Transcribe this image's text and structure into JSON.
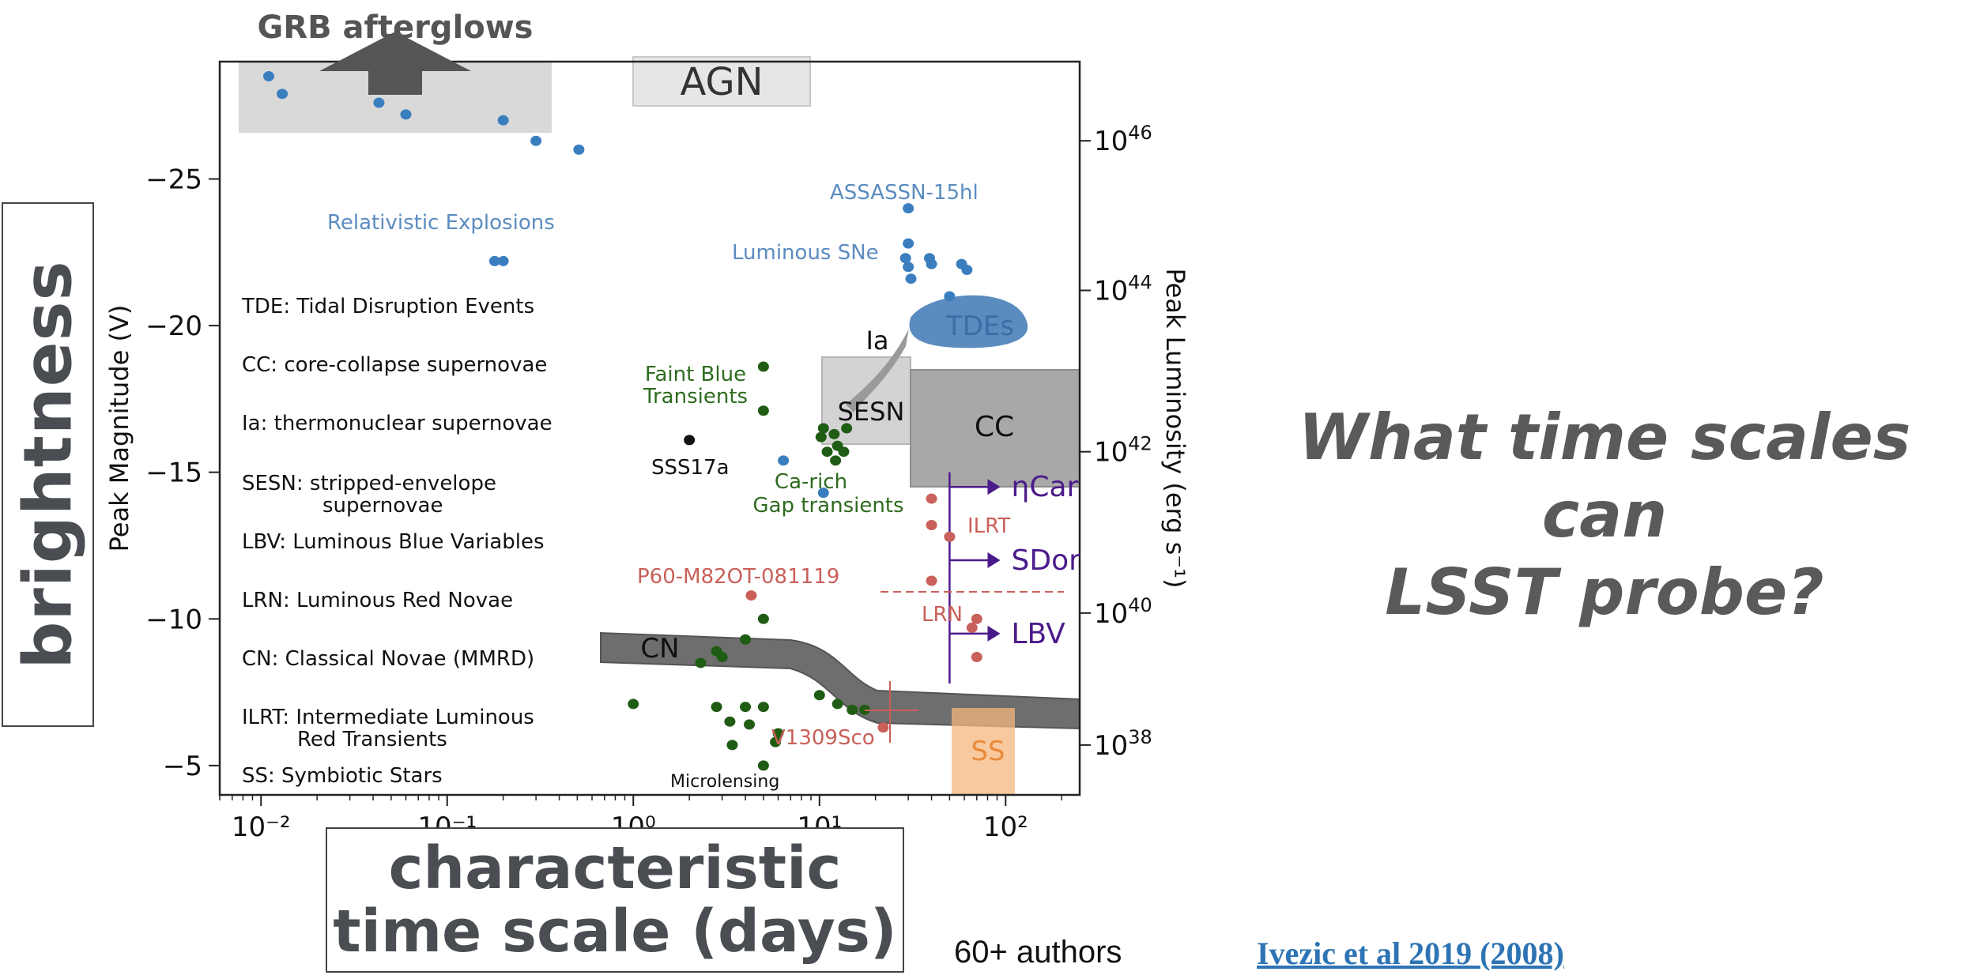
{
  "slide": {
    "brightness_label": "brightness",
    "timescale_label_line1": "characteristic",
    "timescale_label_line2": "time scale (days)",
    "question_line1": "What time scales can",
    "question_line2": "LSST probe?",
    "authors": "60+ authors",
    "citation": "Ivezic et al 2019 (2008)"
  },
  "chart_data": {
    "type": "scatter",
    "title": "",
    "xlabel": "",
    "ylabel": "Peak Magnitude (V)",
    "y2label": "Peak Luminosity (erg s⁻¹)",
    "xscale": "log",
    "xlim": [
      0.006,
      250
    ],
    "ylim": [
      -4.0,
      -29.0
    ],
    "x_ticks": [
      {
        "value": 0.01,
        "label": "10⁻²"
      },
      {
        "value": 0.1,
        "label": "10⁻¹"
      },
      {
        "value": 1,
        "label": "10⁰"
      },
      {
        "value": 10,
        "label": "10¹"
      },
      {
        "value": 100,
        "label": "10²"
      }
    ],
    "y_ticks": [
      {
        "value": -25,
        "label": "−25"
      },
      {
        "value": -20,
        "label": "−20"
      },
      {
        "value": -15,
        "label": "−15"
      },
      {
        "value": -10,
        "label": "−10"
      },
      {
        "value": -5,
        "label": "−5"
      }
    ],
    "y2_ticks": [
      {
        "mag": -26.3,
        "base": "10",
        "exp": "46"
      },
      {
        "mag": -21.2,
        "base": "10",
        "exp": "44"
      },
      {
        "mag": -15.7,
        "base": "10",
        "exp": "42"
      },
      {
        "mag": -10.2,
        "base": "10",
        "exp": "40"
      },
      {
        "mag": -5.7,
        "base": "10",
        "exp": "38"
      }
    ],
    "colors": {
      "blue": "#3a7ebf",
      "green": "#1f5c14",
      "red": "#c9605a",
      "purple": "#4b1a8a",
      "gray": "#6e6e6e",
      "orange": "#f5b77d",
      "black": "#111111"
    },
    "series": [
      {
        "color": "blue",
        "points": [
          [
            0.011,
            -28.5
          ],
          [
            0.013,
            -27.9
          ],
          [
            0.043,
            -27.6
          ],
          [
            0.06,
            -27.2
          ],
          [
            0.2,
            -27.0
          ],
          [
            0.3,
            -26.3
          ],
          [
            0.51,
            -26.0
          ],
          [
            0.18,
            -22.2
          ],
          [
            0.2,
            -22.2
          ],
          [
            30,
            -24.0
          ],
          [
            30,
            -22.8
          ],
          [
            29,
            -22.3
          ],
          [
            30,
            -22.0
          ],
          [
            31,
            -21.6
          ],
          [
            39,
            -22.3
          ],
          [
            40,
            -22.1
          ],
          [
            58,
            -22.1
          ],
          [
            62,
            -21.9
          ],
          [
            50,
            -21.0
          ],
          [
            6.4,
            -15.4
          ],
          [
            10.5,
            -14.3
          ]
        ]
      },
      {
        "color": "green",
        "points": [
          [
            5.0,
            -18.6
          ],
          [
            5.0,
            -17.1
          ],
          [
            10.5,
            -16.5
          ],
          [
            12.0,
            -16.3
          ],
          [
            10.2,
            -16.2
          ],
          [
            14.0,
            -16.5
          ],
          [
            12.5,
            -15.9
          ],
          [
            11.0,
            -15.7
          ],
          [
            13.5,
            -15.7
          ],
          [
            12.2,
            -15.4
          ],
          [
            5.0,
            -10.0
          ],
          [
            4.0,
            -9.3
          ],
          [
            3.0,
            -8.7
          ],
          [
            2.3,
            -8.5
          ],
          [
            2.8,
            -8.9
          ],
          [
            1.0,
            -7.1
          ],
          [
            2.8,
            -7.0
          ],
          [
            4.0,
            -7.0
          ],
          [
            3.3,
            -6.5
          ],
          [
            4.2,
            -6.4
          ],
          [
            5.0,
            -7.0
          ],
          [
            6.0,
            -6.1
          ],
          [
            5.8,
            -5.8
          ],
          [
            3.4,
            -5.7
          ],
          [
            10.0,
            -7.4
          ],
          [
            12.5,
            -7.1
          ],
          [
            15.0,
            -6.9
          ],
          [
            17.5,
            -6.9
          ],
          [
            5.0,
            -5.0
          ]
        ]
      },
      {
        "color": "red",
        "points": [
          [
            40,
            -14.1
          ],
          [
            40,
            -13.2
          ],
          [
            50,
            -12.8
          ],
          [
            40,
            -11.3
          ],
          [
            4.3,
            -10.8
          ],
          [
            70,
            -10.0
          ],
          [
            66,
            -9.7
          ],
          [
            70,
            -8.7
          ],
          [
            22,
            -6.3
          ]
        ]
      },
      {
        "color": "black",
        "points": [
          [
            2.0,
            -16.1
          ]
        ]
      }
    ],
    "regions": [
      {
        "label": "GRB afterglows",
        "color": "gray"
      },
      {
        "label": "AGN",
        "color": "gray"
      },
      {
        "label": "TDEs",
        "color": "blue"
      },
      {
        "label": "Ia",
        "color": "gray"
      },
      {
        "label": "SESN",
        "color": "gray"
      },
      {
        "label": "CC",
        "color": "gray"
      },
      {
        "label": "CN",
        "color": "gray"
      },
      {
        "label": "SS",
        "color": "orange"
      }
    ],
    "limits": [
      {
        "label": "ηCar",
        "mag": -14.5,
        "direction": "right"
      },
      {
        "label": "SDor",
        "mag": -12.0,
        "direction": "right"
      },
      {
        "label": "LBV",
        "mag": -9.5,
        "direction": "right"
      }
    ],
    "annotations": [
      {
        "text": "ASSASSN-15hl",
        "color": "blue"
      },
      {
        "text": "Relativistic Explosions",
        "color": "blue"
      },
      {
        "text": "Luminous SNe",
        "color": "blue"
      },
      {
        "text": "Faint Blue",
        "color": "green"
      },
      {
        "text": "Transients",
        "color": "green"
      },
      {
        "text": "SSS17a",
        "color": "black"
      },
      {
        "text": "Ca-rich",
        "color": "green"
      },
      {
        "text": "Gap transients",
        "color": "green"
      },
      {
        "text": "ILRT",
        "color": "red"
      },
      {
        "text": "P60-M82OT-081119",
        "color": "red"
      },
      {
        "text": "LRN",
        "color": "red"
      },
      {
        "text": "V1309Sco",
        "color": "red"
      },
      {
        "text": "Microlensing",
        "color": "black"
      }
    ],
    "legend_text": [
      "TDE: Tidal Disruption Events",
      "CC: core-collapse supernovae",
      "Ia: thermonuclear supernovae",
      "SESN: stripped-envelope",
      "supernovae",
      "LBV: Luminous Blue Variables",
      "LRN: Luminous Red Novae",
      "CN: Classical Novae (MMRD)",
      "ILRT: Intermediate Luminous",
      "Red Transients",
      "SS: Symbiotic Stars"
    ]
  }
}
